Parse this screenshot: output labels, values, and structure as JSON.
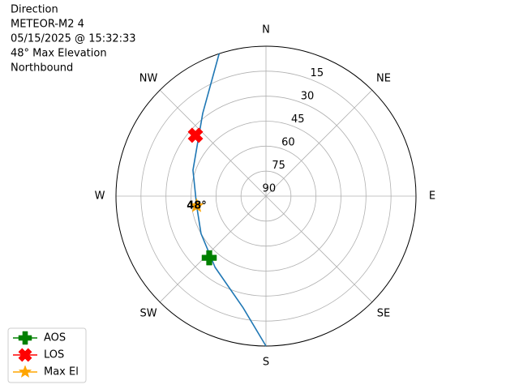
{
  "chart_data": {
    "type": "polar",
    "title": [
      "Direction",
      "METEOR-M2 4",
      "05/15/2025 @ 15:32:33",
      "48° Max Elevation",
      "Northbound"
    ],
    "directions": [
      "N",
      "NE",
      "E",
      "SE",
      "S",
      "SW",
      "W",
      "NW"
    ],
    "thetaticks": [
      0,
      45,
      90,
      135,
      180,
      225,
      270,
      315
    ],
    "rlim": [
      90,
      0
    ],
    "rticks": [
      15,
      30,
      45,
      60,
      75,
      90
    ],
    "grid": true,
    "legend": "lower left",
    "track": {
      "color": "#1f77b4",
      "azimuth": [
        180,
        191.5,
        215.6,
        240,
        262,
        289.6,
        322.6,
        341.8
      ],
      "elevation": [
        0,
        21.5,
        37.5,
        45,
        48,
        43.5,
        27.5,
        0
      ]
    },
    "series": [
      {
        "name": "AOS",
        "color": "green",
        "marker": "plus",
        "azimuth": [
          222.6
        ],
        "elevation": [
          39.7
        ]
      },
      {
        "name": "LOS",
        "color": "red",
        "marker": "x",
        "azimuth": [
          310.8
        ],
        "elevation": [
          34.1
        ]
      },
      {
        "name": "Max El",
        "color": "orange",
        "marker": "star",
        "azimuth": [
          262
        ],
        "elevation": [
          48
        ],
        "value_labels": [
          "48°"
        ]
      }
    ]
  }
}
